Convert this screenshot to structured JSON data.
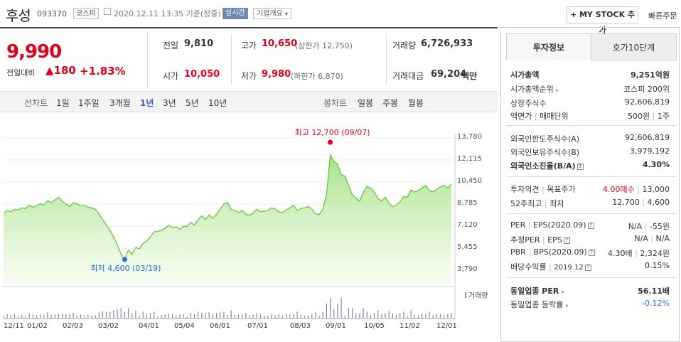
{
  "header": {
    "name": "후성",
    "code": "093370",
    "market": "코스피",
    "datetime": "2020.12.11 13:35 기준(장중)",
    "realtime": "실시간",
    "company_overview": "기업개요",
    "my_stock": "+ MY STOCK 추가",
    "quick_order": "빠른주문"
  },
  "price": {
    "current": "9,990",
    "change_label": "전일대비",
    "change": "▲180",
    "change_pct": "+1.83%"
  },
  "stats": {
    "prev_lbl": "전일",
    "prev_val": "9,810",
    "open_lbl": "시가",
    "open_val": "10,050",
    "high_lbl": "고가",
    "high_val": "10,650",
    "high_sub": "(상한가 12,750)",
    "low_lbl": "저가",
    "low_val": "9,980",
    "low_sub": "(하한가 6,870)",
    "vol_lbl": "거래량",
    "vol_val": "6,726,933",
    "amt_lbl": "거래대금",
    "amt_val": "69,204",
    "amt_unit": "백만"
  },
  "tabs": {
    "line_chart": "선차트",
    "periods": [
      "1일",
      "1주일",
      "3개월",
      "1년",
      "3년",
      "5년",
      "10년"
    ],
    "selected": "1년",
    "candle_chart": "봉차트",
    "candles": [
      "일봉",
      "주봉",
      "월봉"
    ]
  },
  "right_tabs": {
    "invest_info": "투자정보",
    "hoga": "호가10단계"
  },
  "invest": {
    "mktcap_lbl": "시가총액",
    "mktcap_val": "9,251억원",
    "rank_lbl": "시가총액순위",
    "rank_val": "코스피 200위",
    "shares_lbl": "상장주식수",
    "shares_val": "92,606,819",
    "facevalue_lbl": "액면가",
    "trade_unit_lbl": "매매단위",
    "facevalue_val": "500원",
    "trade_unit_val": "1주",
    "foreign_limit_lbl": "외국인한도주식수(A)",
    "foreign_limit_val": "92,606,819",
    "foreign_hold_lbl": "외국인보유주식수(B)",
    "foreign_hold_val": "3,979,192",
    "foreign_ratio_lbl": "외국인소진율(B/A)",
    "foreign_ratio_val": "4.30%",
    "opinion_lbl": "투자의견",
    "target_lbl": "목표주가",
    "opinion_val": "4.00매수",
    "target_val": "13,000",
    "w52_hi_lbl": "52주최고",
    "w52_lo_lbl": "최저",
    "w52_hi_val": "12,700",
    "w52_lo_val": "4,600",
    "per_lbl": "PER",
    "eps_lbl": "EPS(2020.09)",
    "per_val": "N/A",
    "eps_val": "-55원",
    "est_per_lbl": "추정PER",
    "est_eps_lbl": "EPS",
    "est_per_val": "N/A",
    "est_eps_val": "N/A",
    "pbr_lbl": "PBR",
    "bps_lbl": "BPS(2020.09)",
    "pbr_val": "4.30배",
    "bps_val": "2,324원",
    "div_lbl": "배당수익률",
    "div_date": "2019.12",
    "div_val": "0.15%",
    "ind_per_lbl": "동일업종 PER",
    "ind_per_val": "56.11배",
    "ind_chg_lbl": "동일업종 등락률",
    "ind_chg_val": "-0.12%"
  },
  "chart_data": {
    "type": "area",
    "yticks": [
      "13,780",
      "12,115",
      "10,450",
      "8,785",
      "7,120",
      "5,455",
      "3,790"
    ],
    "ylim": [
      3790,
      13780
    ],
    "xticks": [
      "12/11",
      "01/02",
      "02/03",
      "03/02",
      "04/01",
      "05/04",
      "06/01",
      "07/01",
      "08/03",
      "09/01",
      "10/05",
      "11/02",
      "12/01"
    ],
    "volume_label": "거래량",
    "high_annotation": "최고 12,700 (09/07)",
    "low_annotation": "최저 4,600 (03/19)",
    "high_value": 12700,
    "low_value": 4600,
    "price_series": [
      8100,
      8300,
      8200,
      8400,
      8350,
      8500,
      8450,
      8700,
      8550,
      8650,
      8800,
      8700,
      9050,
      8900,
      9100,
      9300,
      9000,
      8800,
      8600,
      8900,
      8800,
      8650,
      8700,
      8550,
      8500,
      8400,
      8050,
      7600,
      7200,
      6800,
      6300,
      5700,
      5000,
      4600,
      5300,
      5000,
      5500,
      5400,
      5800,
      6000,
      6300,
      6700,
      6700,
      6800,
      6950,
      7200,
      7000,
      7050,
      6900,
      7100,
      7100,
      7400,
      7200,
      7600,
      7900,
      7600,
      7950,
      7700,
      8000,
      8400,
      8800,
      8900,
      8400,
      8300,
      8150,
      8300,
      8000,
      7950,
      8100,
      8400,
      8200,
      8250,
      8300,
      8500,
      8400,
      8200,
      8150,
      8350,
      8500,
      8700,
      8300,
      8450,
      8500,
      8600,
      8400,
      8050,
      8000,
      8400,
      9500,
      12500,
      12000,
      11800,
      11000,
      10900,
      10200,
      9500,
      9250,
      9000,
      9700,
      10100,
      10000,
      9700,
      9200,
      9000,
      9300,
      8850,
      8600,
      8700,
      8950,
      9350,
      9300,
      9850,
      9700,
      9800,
      10000,
      10200,
      9800,
      9700,
      9900,
      10100,
      10200,
      10000,
      10300
    ]
  }
}
